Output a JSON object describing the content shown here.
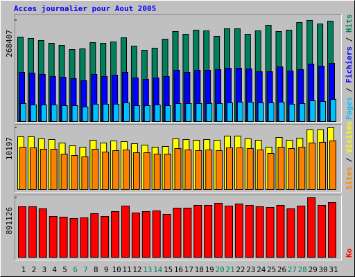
{
  "title": "Acces journalier pour Aout 2005",
  "legend_separator": " / ",
  "chart_data": [
    {
      "type": "bar",
      "ylim": [
        0,
        268407
      ],
      "yticks": [
        268407
      ],
      "series": [
        {
          "name": "Hits",
          "color": "#00805c",
          "values": [
            224236,
            220560,
            215046,
            207694,
            202180,
            191152,
            192990,
            209532,
            207694,
            211370,
            222398,
            200342,
            189314,
            194828,
            218722,
            238940,
            231588,
            242616,
            240778,
            226074,
            246292,
            246292,
            231588,
            240778,
            255482,
            238940,
            242616,
            262834,
            268407,
            259158,
            266510
          ]
        },
        {
          "name": "Fichiers",
          "color": "#0000ff",
          "values": [
            130500,
            128700,
            125000,
            119500,
            117600,
            114000,
            108400,
            125000,
            119500,
            123100,
            130500,
            115800,
            112100,
            115800,
            119500,
            136000,
            130500,
            136000,
            136000,
            137900,
            141500,
            141500,
            139700,
            132300,
            132300,
            145200,
            134200,
            137900,
            152600,
            147000,
            154400
          ]
        },
        {
          "name": "Pages",
          "color": "#00c0ff",
          "values": [
            47800,
            44100,
            44100,
            44100,
            42300,
            42300,
            38600,
            46000,
            46000,
            46000,
            49600,
            42300,
            42300,
            44100,
            42300,
            47800,
            47800,
            47800,
            47800,
            47800,
            49600,
            51500,
            51500,
            49600,
            49600,
            51500,
            46000,
            47800,
            55100,
            53300,
            58800
          ]
        }
      ]
    },
    {
      "type": "bar",
      "ylim": [
        0,
        10197
      ],
      "yticks": [
        10197
      ],
      "series": [
        {
          "name": "Visites",
          "color": "#ffff00",
          "values": [
            8710,
            8710,
            8366,
            8251,
            7678,
            7220,
            6991,
            8137,
            7678,
            8022,
            7907,
            7564,
            7334,
            6991,
            7105,
            8366,
            8251,
            8137,
            8251,
            8137,
            8824,
            8824,
            8366,
            8137,
            6991,
            8595,
            8137,
            8480,
            9856,
            9856,
            10197
          ]
        },
        {
          "name": "Sites",
          "color": "#ff8000",
          "values": [
            6991,
            6876,
            6647,
            6647,
            5845,
            5615,
            5386,
            6647,
            6188,
            6418,
            6532,
            6074,
            6074,
            5845,
            5845,
            6761,
            6532,
            6418,
            6532,
            6418,
            6876,
            6876,
            6761,
            6532,
            5959,
            6991,
            6761,
            6991,
            7678,
            7793,
            8022
          ]
        }
      ]
    },
    {
      "type": "bar",
      "ylim": [
        0,
        891126
      ],
      "yticks": [
        891126
      ],
      "categories": [
        "1",
        "2",
        "3",
        "4",
        "5",
        "6",
        "7",
        "8",
        "9",
        "10",
        "11",
        "12",
        "13",
        "14",
        "15",
        "16",
        "17",
        "18",
        "19",
        "20",
        "21",
        "22",
        "23",
        "24",
        "25",
        "26",
        "27",
        "28",
        "29",
        "30",
        "31"
      ],
      "category_colors": [
        "#000000",
        "#000000",
        "#000000",
        "#000000",
        "#000000",
        "#00805c",
        "#00805c",
        "#000000",
        "#000000",
        "#000000",
        "#000000",
        "#000000",
        "#00805c",
        "#00805c",
        "#000000",
        "#000000",
        "#000000",
        "#000000",
        "#000000",
        "#00805c",
        "#00805c",
        "#000000",
        "#000000",
        "#000000",
        "#000000",
        "#000000",
        "#00805c",
        "#00805c",
        "#000000",
        "#000000",
        "#000000"
      ],
      "series": [
        {
          "name": "Ko",
          "color": "#ff0000",
          "values": [
            756400,
            756400,
            725300,
            611400,
            601000,
            580300,
            590600,
            652800,
            611400,
            683900,
            766800,
            663200,
            683900,
            694300,
            642400,
            735700,
            735700,
            777100,
            777100,
            808200,
            766800,
            797900,
            777100,
            756400,
            746100,
            777100,
            725300,
            766800,
            891126,
            777100,
            818600
          ]
        }
      ]
    }
  ]
}
